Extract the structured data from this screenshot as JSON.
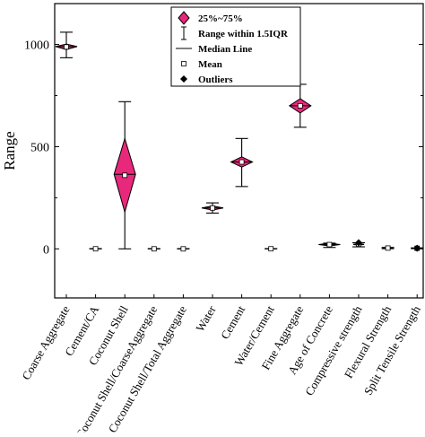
{
  "chart_data": {
    "type": "box",
    "xlabel": "",
    "ylabel": "Range",
    "ylim": [
      -240,
      1200
    ],
    "yticks": [
      0,
      500,
      1000
    ],
    "grid": false,
    "legend_position": "top-center",
    "legend": [
      {
        "label": "25%~75%",
        "marker": "diamond-pink"
      },
      {
        "label": "Range within 1.5IQR",
        "marker": "whisker"
      },
      {
        "label": "Median Line",
        "marker": "line"
      },
      {
        "label": "Mean",
        "marker": "open-square"
      },
      {
        "label": "Outliers",
        "marker": "filled-diamond"
      }
    ],
    "accent_color": "#e8287a",
    "categories": [
      "Coarse Aggregate",
      "Cement/CA",
      "Coconut Shell",
      "Coconut Shell/CoarseAggregate",
      "Coconut Shell/Total Aggregate",
      "Water",
      "Cement",
      "Water/Cement",
      "Fine Aggregate",
      "Age of Concrete",
      "Compressive strength",
      "Flexural Strength",
      "Split Tensile Strength"
    ],
    "boxes": [
      {
        "min": 935,
        "q1": 975,
        "median": 990,
        "mean": 988,
        "q3": 1002,
        "max": 1060
      },
      {
        "min": 0.3,
        "q1": 0.35,
        "median": 0.4,
        "mean": 0.4,
        "q3": 0.45,
        "max": 0.5
      },
      {
        "min": 0,
        "q1": 180,
        "median": 365,
        "mean": 360,
        "q3": 540,
        "max": 720
      },
      {
        "min": 0,
        "q1": 0.1,
        "median": 0.2,
        "mean": 0.2,
        "q3": 0.3,
        "max": 1
      },
      {
        "min": 0,
        "q1": 0.05,
        "median": 0.1,
        "mean": 0.1,
        "q3": 0.15,
        "max": 0.5
      },
      {
        "min": 175,
        "q1": 190,
        "median": 200,
        "mean": 200,
        "q3": 210,
        "max": 225
      },
      {
        "min": 305,
        "q1": 400,
        "median": 425,
        "mean": 425,
        "q3": 450,
        "max": 540
      },
      {
        "min": 0.3,
        "q1": 0.4,
        "median": 0.45,
        "mean": 0.45,
        "q3": 0.5,
        "max": 0.6
      },
      {
        "min": 595,
        "q1": 665,
        "median": 700,
        "mean": 700,
        "q3": 735,
        "max": 805
      },
      {
        "min": 7,
        "q1": 14,
        "median": 21,
        "mean": 21,
        "q3": 28,
        "max": 28
      },
      {
        "min": 10,
        "q1": 18,
        "median": 22,
        "mean": 23,
        "q3": 28,
        "max": 30
      },
      {
        "min": 1,
        "q1": 3,
        "median": 4,
        "mean": 4,
        "q3": 5,
        "max": 7
      },
      {
        "min": 1,
        "q1": 2,
        "median": 3,
        "mean": 3,
        "q3": 4,
        "max": 5
      }
    ],
    "outliers": [
      {
        "category": "Compressive strength",
        "value": 30
      },
      {
        "category": "Split Tensile Strength",
        "value": 3
      }
    ]
  }
}
